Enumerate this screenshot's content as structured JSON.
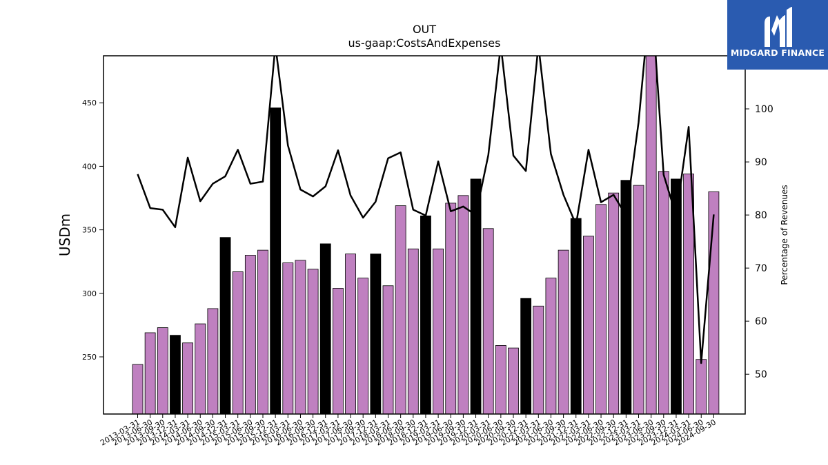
{
  "logo": {
    "text": "MIDGARD FINANCE",
    "background": "#2a5bb0"
  },
  "chart_data": {
    "type": "bar",
    "title": "OUT",
    "subtitle": "us-gaap:CostsAndExpenses",
    "ylabel": "USDm",
    "y2label": "Percentage of Revenues",
    "ylim": [
      205,
      487
    ],
    "y2lim": [
      42.5,
      110
    ],
    "yticks": [
      250,
      300,
      350,
      400,
      450
    ],
    "y2ticks": [
      50,
      60,
      70,
      80,
      90,
      100
    ],
    "colors": {
      "quarter": "#bf80c0",
      "year_end": "#000000",
      "line": "#000000"
    },
    "categories": [
      "2013-03-31",
      "2013-06-30",
      "2013-09-30",
      "2013-12-31",
      "2014-03-31",
      "2014-06-30",
      "2014-09-30",
      "2014-12-31",
      "2015-03-31",
      "2015-06-30",
      "2015-09-30",
      "2015-12-31",
      "2016-03-31",
      "2016-06-30",
      "2016-09-30",
      "2016-12-31",
      "2017-03-31",
      "2017-06-30",
      "2017-09-30",
      "2017-12-31",
      "2018-03-31",
      "2018-06-30",
      "2018-09-30",
      "2018-12-31",
      "2019-03-31",
      "2019-06-30",
      "2019-09-30",
      "2019-12-31",
      "2020-03-31",
      "2020-06-30",
      "2020-09-30",
      "2020-12-31",
      "2021-03-31",
      "2021-06-30",
      "2021-09-30",
      "2021-12-31",
      "2022-03-31",
      "2022-06-30",
      "2022-09-30",
      "2022-12-31",
      "2023-03-31",
      "2023-06-30",
      "2023-09-30",
      "2023-12-31",
      "2024-03-31",
      "2024-06-30",
      "2024-09-30"
    ],
    "series": [
      {
        "values": [
          244,
          269,
          273,
          267,
          261,
          276,
          288,
          344,
          317,
          330,
          334,
          446,
          324,
          326,
          319,
          339,
          304,
          331,
          312,
          331,
          306,
          369,
          335,
          361,
          335,
          371,
          377,
          390,
          351,
          259,
          257,
          296,
          290,
          312,
          334,
          359,
          345,
          370,
          379,
          389,
          385,
          505,
          396,
          390,
          394,
          248,
          380
        ],
        "year_end": [
          false,
          false,
          false,
          true,
          false,
          false,
          false,
          true,
          false,
          false,
          false,
          true,
          false,
          false,
          false,
          true,
          false,
          false,
          false,
          true,
          false,
          false,
          false,
          true,
          false,
          false,
          false,
          true,
          false,
          false,
          false,
          true,
          false,
          false,
          false,
          true,
          false,
          false,
          false,
          true,
          false,
          false,
          false,
          true,
          false,
          false,
          false
        ]
      },
      {
        "axis": "right",
        "type": "line",
        "values": [
          87.7,
          81.3,
          81.0,
          77.7,
          90.8,
          82.6,
          85.9,
          87.3,
          92.3,
          85.9,
          86.3,
          112,
          93.1,
          84.8,
          83.5,
          85.4,
          92.2,
          83.7,
          79.5,
          82.5,
          90.7,
          91.8,
          81.0,
          79.9,
          90.1,
          80.7,
          81.6,
          80.0,
          91.3,
          112,
          91.2,
          88.3,
          112,
          91.5,
          83.8,
          78.2,
          92.3,
          82.4,
          83.8,
          79.9,
          97.5,
          123,
          87.6,
          79.9,
          96.6,
          52.1,
          80.1
        ]
      }
    ]
  }
}
